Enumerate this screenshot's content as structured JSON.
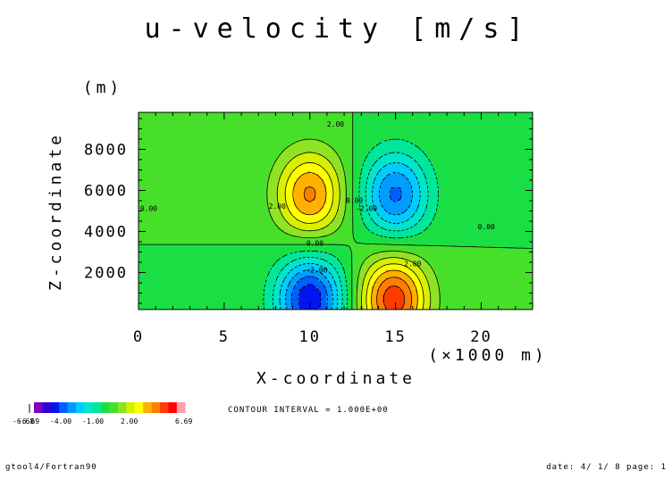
{
  "chart_data": {
    "type": "heatmap",
    "title": "u-velocity [m/s]",
    "xlabel": "X-coordinate",
    "x_unit": "(×1000 m)",
    "ylabel": "Z-coordinate",
    "y_unit": "(m)",
    "xlim": [
      0,
      23
    ],
    "ylim": [
      200,
      9800
    ],
    "x_ticks": [
      0,
      5,
      10,
      15,
      20
    ],
    "y_ticks": [
      2000,
      4000,
      6000,
      8000
    ],
    "x_tick_labels": [
      "0",
      "5",
      "10",
      "15",
      "20"
    ],
    "y_tick_labels": [
      "2000",
      "4000",
      "6000",
      "8000"
    ],
    "contour_interval_text": "CONTOUR INTERVAL = 1.000E+00",
    "contour_labels": [
      {
        "text": "2.00",
        "x": 11.5,
        "y": 9100
      },
      {
        "text": "2.00",
        "x": 8.1,
        "y": 5100
      },
      {
        "text": "0.00",
        "x": 0.6,
        "y": 5000
      },
      {
        "text": "0.00",
        "x": 12.6,
        "y": 5400
      },
      {
        "text": "-2.00",
        "x": 13.3,
        "y": 5000
      },
      {
        "text": "0.00",
        "x": 10.3,
        "y": 3300
      },
      {
        "text": "-2.00",
        "x": 10.4,
        "y": 2000
      },
      {
        "text": "2.00",
        "x": 16.0,
        "y": 2300
      },
      {
        "text": "0.00",
        "x": 20.3,
        "y": 4100
      }
    ],
    "extremes": [
      {
        "name": "upper-positive",
        "x": 10.0,
        "y": 5800,
        "value": 5.2
      },
      {
        "name": "upper-negative",
        "x": 15.0,
        "y": 5800,
        "value": -5.2
      },
      {
        "name": "lower-negative",
        "x": 10.0,
        "y": 700,
        "value": -6.8
      },
      {
        "name": "lower-positive",
        "x": 14.9,
        "y": 700,
        "value": 6.69
      }
    ],
    "colorbar": {
      "min_label": "-6.68",
      "min_label_overlap": "-6.69",
      "labels": [
        "-4.00",
        "-1.00",
        "2.00",
        "6.69"
      ],
      "colors": [
        "#7f00bf",
        "#2f00d6",
        "#0015f0",
        "#0060ff",
        "#009cff",
        "#00ccff",
        "#00e5cc",
        "#00e69a",
        "#1adf44",
        "#46e02a",
        "#8fe324",
        "#d8f000",
        "#ffff00",
        "#ffb000",
        "#ff7d00",
        "#ff3c00",
        "#ff0000",
        "#ff9fae"
      ]
    }
  },
  "footer": {
    "left": "gtool4/Fortran90",
    "right": "date: 4/ 1/ 8 page: 1"
  }
}
